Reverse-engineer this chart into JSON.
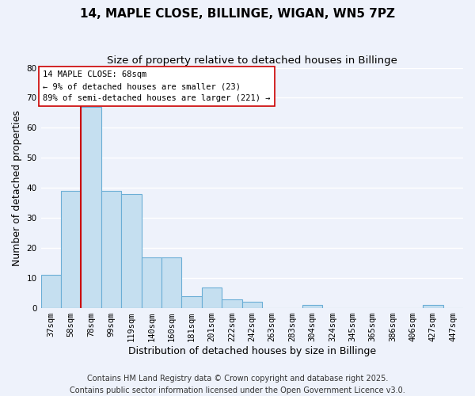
{
  "title": "14, MAPLE CLOSE, BILLINGE, WIGAN, WN5 7PZ",
  "subtitle": "Size of property relative to detached houses in Billinge",
  "xlabel": "Distribution of detached houses by size in Billinge",
  "ylabel": "Number of detached properties",
  "bin_labels": [
    "37sqm",
    "58sqm",
    "78sqm",
    "99sqm",
    "119sqm",
    "140sqm",
    "160sqm",
    "181sqm",
    "201sqm",
    "222sqm",
    "242sqm",
    "263sqm",
    "283sqm",
    "304sqm",
    "324sqm",
    "345sqm",
    "365sqm",
    "386sqm",
    "406sqm",
    "427sqm",
    "447sqm"
  ],
  "bar_values": [
    11,
    39,
    67,
    39,
    38,
    17,
    17,
    4,
    7,
    3,
    2,
    0,
    0,
    1,
    0,
    0,
    0,
    0,
    0,
    1,
    0
  ],
  "bar_color": "#c5dff0",
  "bar_edge_color": "#6baed6",
  "ylim": [
    0,
    80
  ],
  "yticks": [
    0,
    10,
    20,
    30,
    40,
    50,
    60,
    70,
    80
  ],
  "property_line_x": 1.5,
  "property_line_color": "#cc0000",
  "annotation_title": "14 MAPLE CLOSE: 68sqm",
  "annotation_line1": "← 9% of detached houses are smaller (23)",
  "annotation_line2": "89% of semi-detached houses are larger (221) →",
  "annotation_box_color": "#ffffff",
  "annotation_border_color": "#cc0000",
  "footer_line1": "Contains HM Land Registry data © Crown copyright and database right 2025.",
  "footer_line2": "Contains public sector information licensed under the Open Government Licence v3.0.",
  "background_color": "#eef2fb",
  "grid_color": "#ffffff",
  "title_fontsize": 11,
  "subtitle_fontsize": 9.5,
  "axis_label_fontsize": 9,
  "tick_fontsize": 7.5,
  "footer_fontsize": 7
}
